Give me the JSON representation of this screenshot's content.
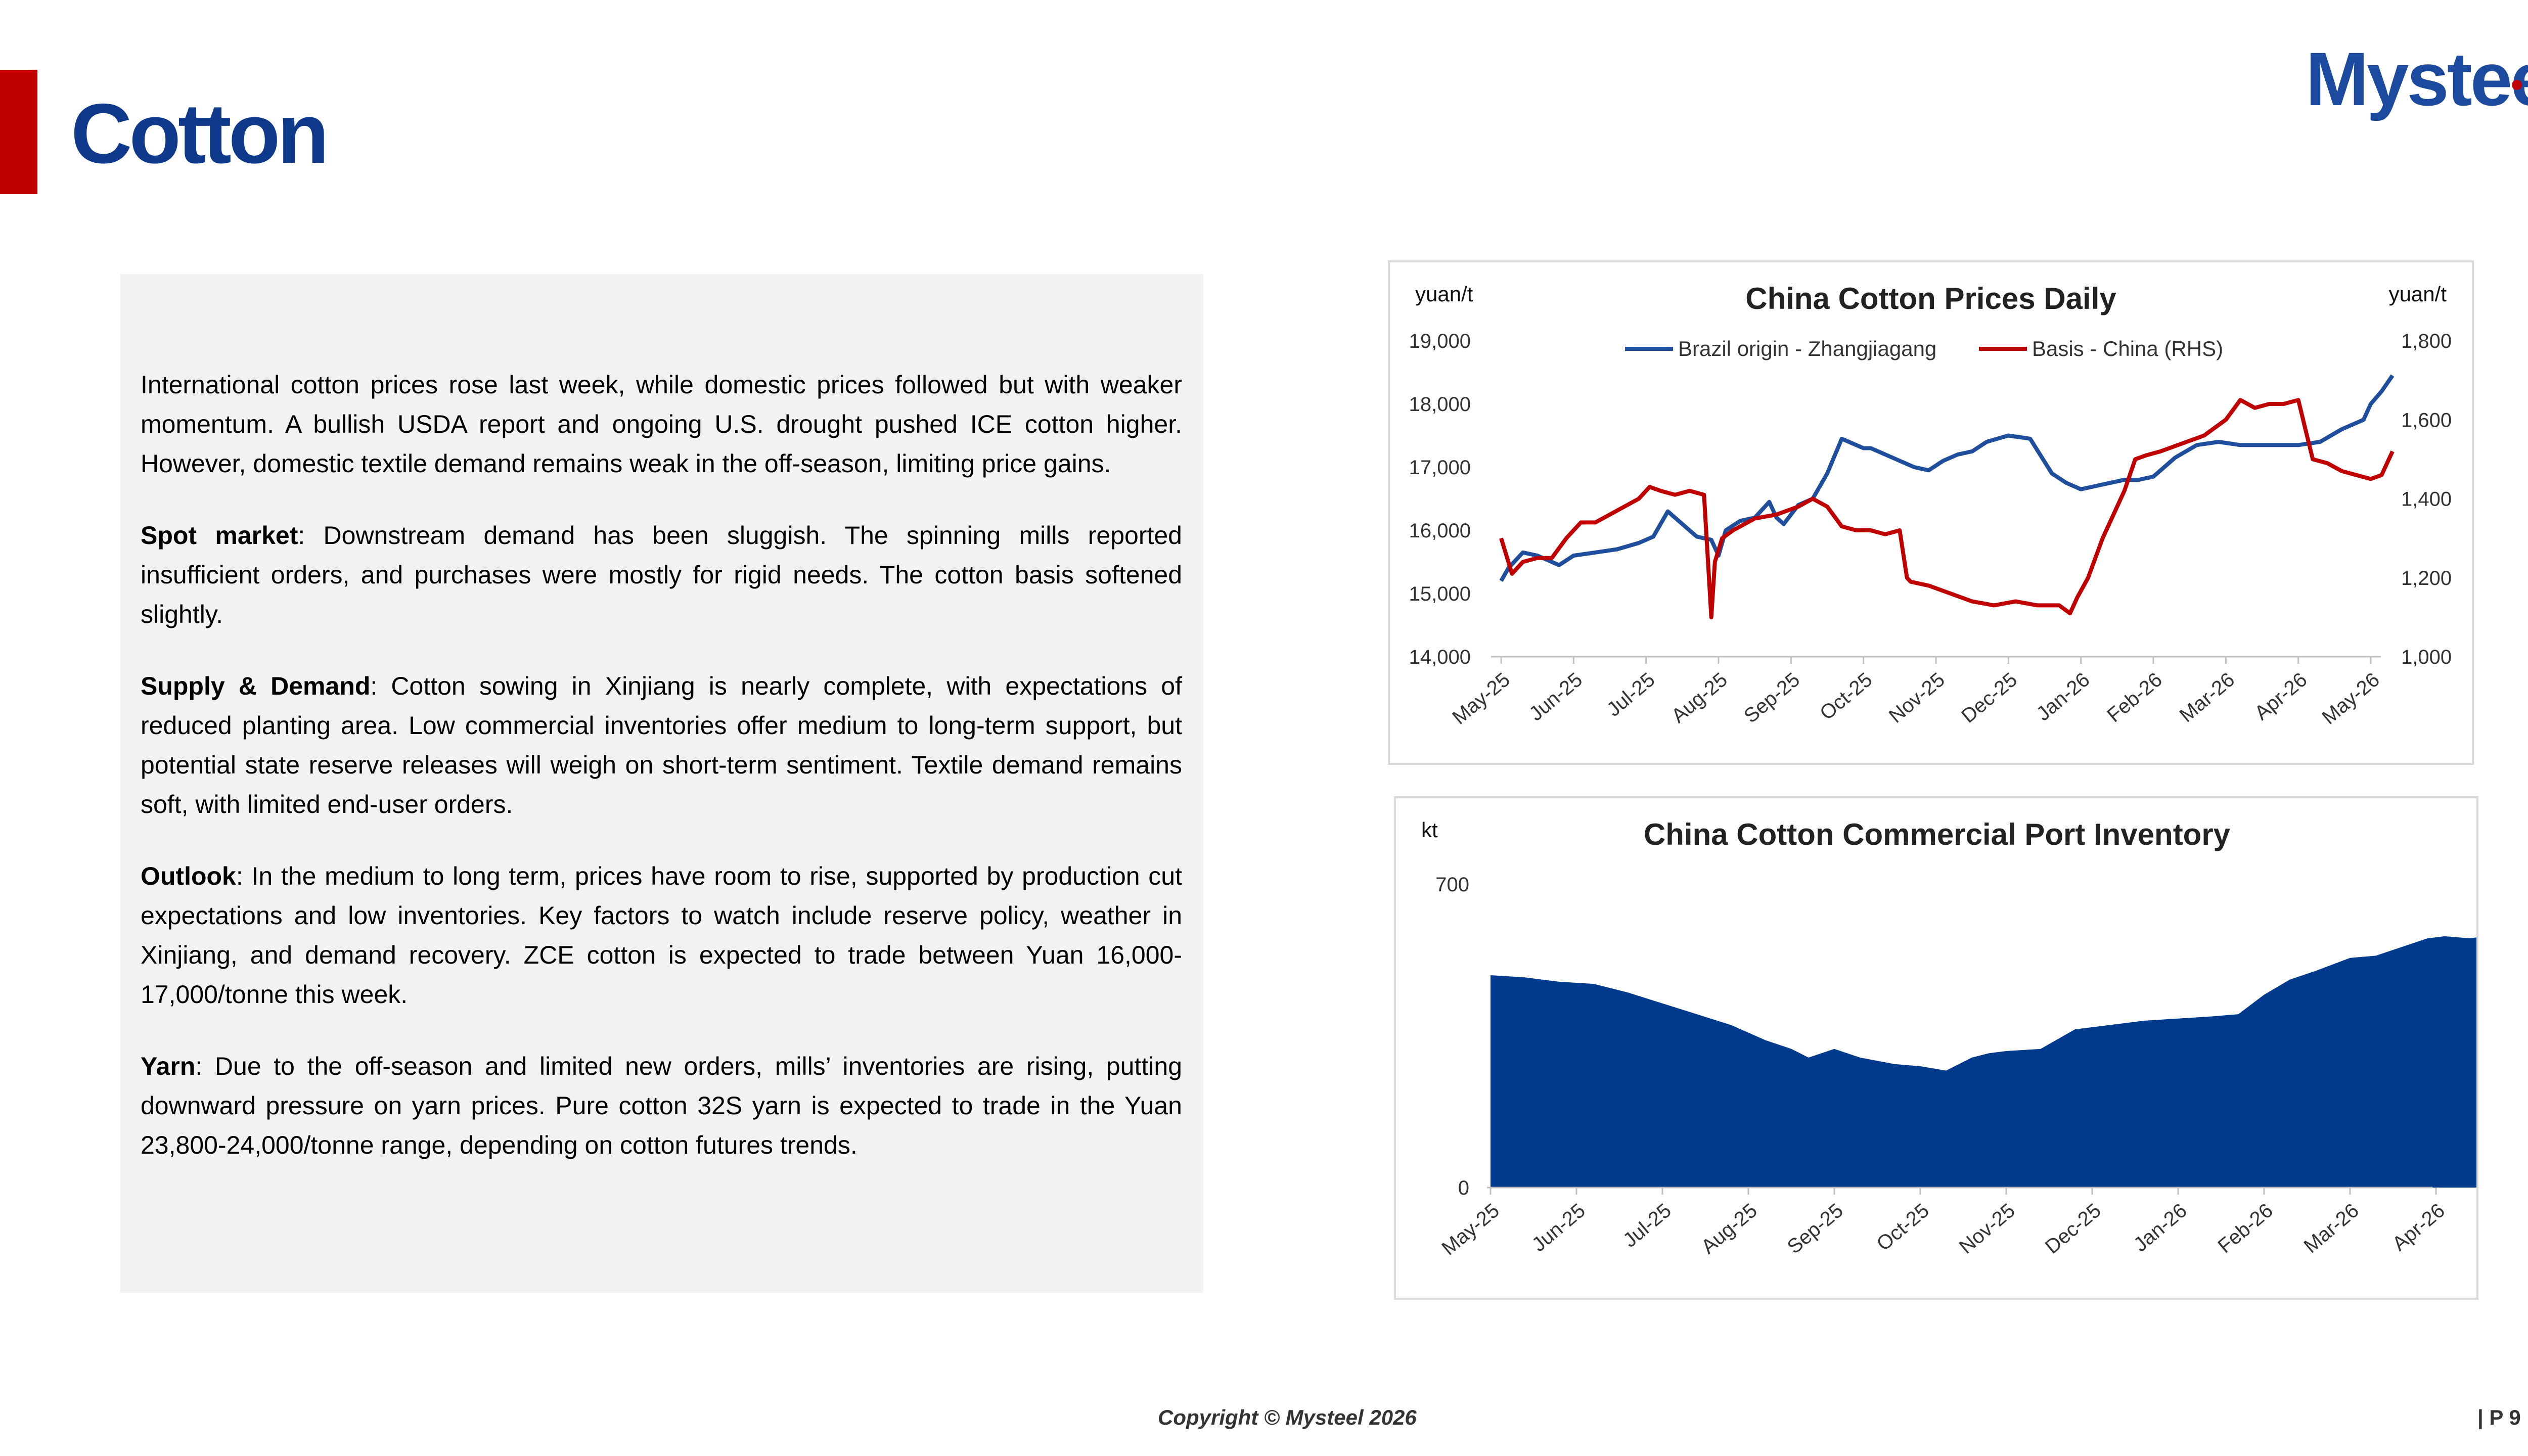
{
  "header": {
    "title": "Cotton",
    "logo_text": "Mysteel",
    "accent_color": "#c00000",
    "title_color": "#0f3a8c"
  },
  "commentary": {
    "intro": "International cotton prices rose last week, while domestic prices followed but with weaker momentum. A bullish USDA report and ongoing U.S. drought pushed ICE cotton higher. However, domestic textile demand remains weak in the off-season, limiting price gains.",
    "spot_heading": "Spot market",
    "spot_text": ": Downstream demand has been sluggish. The spinning mills reported insufficient orders, and purchases were mostly for rigid needs. The cotton basis softened slightly.",
    "supply_heading": "Supply & Demand",
    "supply_text": ": Cotton sowing in Xinjiang is nearly complete, with expectations of reduced planting area. Low commercial inventories offer medium to long-term support, but potential state reserve releases will weigh on short-term sentiment. Textile demand remains soft, with limited end-user orders.",
    "outlook_heading": "Outlook",
    "outlook_text": ": In the medium to long term, prices have room to rise, supported by production cut expectations and low inventories. Key factors to watch include reserve policy, weather in Xinjiang, and demand recovery. ZCE cotton is expected to trade between Yuan 16,000-17,000/tonne this week.",
    "yarn_heading": "Yarn",
    "yarn_text": ": Due to the off-season and limited new orders, mills’ inventories are rising, putting downward pressure on yarn prices. Pure cotton 32S yarn is expected to trade in the Yuan 23,800-24,000/tonne range, depending on cotton futures trends."
  },
  "footer": {
    "copyright": "Copyright © Mysteel 2026",
    "page": "| P 9"
  },
  "chart_data": [
    {
      "type": "line",
      "title": "China Cotton Prices Daily",
      "ylabel_left": "yuan/t",
      "ylabel_right": "yuan/t",
      "ylim_left": [
        14000,
        19000
      ],
      "ylim_right": [
        1000,
        1800
      ],
      "yticks_left": [
        "14,000",
        "15,000",
        "16,000",
        "17,000",
        "18,000",
        "19,000"
      ],
      "yticks_right": [
        "1,000",
        "1,200",
        "1,400",
        "1,600",
        "1,800"
      ],
      "categories": [
        "May-25",
        "Jun-25",
        "Jul-25",
        "Aug-25",
        "Sep-25",
        "Oct-25",
        "Nov-25",
        "Dec-25",
        "Jan-26",
        "Feb-26",
        "Mar-26",
        "Apr-26",
        "May-26"
      ],
      "legend_position": "top",
      "grid": false,
      "series": [
        {
          "name": "Brazil origin - Zhangjiagang",
          "axis": "left",
          "color": "#1f4e9c",
          "x": [
            0,
            0.1,
            0.3,
            0.5,
            0.8,
            1.0,
            1.3,
            1.6,
            1.9,
            2.1,
            2.3,
            2.5,
            2.7,
            2.9,
            3.0,
            3.1,
            3.3,
            3.5,
            3.7,
            3.8,
            3.9,
            4.1,
            4.3,
            4.5,
            4.7,
            4.9,
            5.0,
            5.1,
            5.3,
            5.5,
            5.7,
            5.9,
            6.1,
            6.3,
            6.5,
            6.7,
            7.0,
            7.3,
            7.6,
            7.8,
            7.9,
            8.0,
            8.2,
            8.4,
            8.6,
            8.8,
            9.0,
            9.3,
            9.6,
            9.9,
            10.2,
            10.5,
            10.7,
            11.0,
            11.3,
            11.6,
            11.9,
            12.0,
            12.15,
            12.3
          ],
          "y": [
            15200,
            15400,
            15650,
            15600,
            15450,
            15600,
            15650,
            15700,
            15800,
            15900,
            16300,
            16100,
            15900,
            15850,
            15600,
            16000,
            16150,
            16200,
            16450,
            16200,
            16100,
            16400,
            16500,
            16900,
            17450,
            17350,
            17300,
            17300,
            17200,
            17100,
            17000,
            16950,
            17100,
            17200,
            17250,
            17400,
            17500,
            17450,
            16900,
            16750,
            16700,
            16650,
            16700,
            16750,
            16800,
            16800,
            16850,
            17150,
            17350,
            17400,
            17350,
            17350,
            17350,
            17350,
            17400,
            17600,
            17750,
            18000,
            18200,
            18450
          ]
        },
        {
          "name": "Basis - China (RHS)",
          "axis": "right",
          "color": "#c00000",
          "x": [
            0,
            0.15,
            0.3,
            0.5,
            0.7,
            0.9,
            1.1,
            1.3,
            1.5,
            1.7,
            1.9,
            2.05,
            2.2,
            2.4,
            2.6,
            2.8,
            2.9,
            2.95,
            3.05,
            3.2,
            3.5,
            3.8,
            4.1,
            4.3,
            4.5,
            4.7,
            4.9,
            5.1,
            5.3,
            5.5,
            5.6,
            5.65,
            5.9,
            6.2,
            6.5,
            6.8,
            7.1,
            7.4,
            7.7,
            7.85,
            7.95,
            8.1,
            8.3,
            8.6,
            8.75,
            8.9,
            9.1,
            9.4,
            9.7,
            10.0,
            10.2,
            10.4,
            10.6,
            10.8,
            11.0,
            11.2,
            11.4,
            11.6,
            11.8,
            12.0,
            12.15,
            12.3
          ],
          "y": [
            1300,
            1210,
            1240,
            1250,
            1250,
            1300,
            1340,
            1340,
            1360,
            1380,
            1400,
            1430,
            1420,
            1410,
            1420,
            1410,
            1100,
            1240,
            1300,
            1320,
            1350,
            1360,
            1380,
            1400,
            1380,
            1330,
            1320,
            1320,
            1310,
            1320,
            1200,
            1190,
            1180,
            1160,
            1140,
            1130,
            1140,
            1130,
            1130,
            1110,
            1150,
            1200,
            1300,
            1420,
            1500,
            1510,
            1520,
            1540,
            1560,
            1600,
            1650,
            1630,
            1640,
            1640,
            1650,
            1500,
            1490,
            1470,
            1460,
            1450,
            1460,
            1520
          ]
        }
      ]
    },
    {
      "type": "area",
      "title": "China Cotton Commercial Port Inventory",
      "ylabel": "kt",
      "ylim": [
        0,
        700
      ],
      "yticks": [
        "0",
        "700"
      ],
      "categories": [
        "May-25",
        "Jun-25",
        "Jul-25",
        "Aug-25",
        "Sep-25",
        "Oct-25",
        "Nov-25",
        "Dec-25",
        "Jan-26",
        "Feb-26",
        "Mar-26",
        "Apr-26"
      ],
      "grid": false,
      "series": [
        {
          "name": "",
          "color": "#003a8c",
          "x": [
            0,
            0.4,
            0.8,
            1.2,
            1.6,
            2.0,
            2.4,
            2.8,
            3.2,
            3.5,
            3.7,
            4.0,
            4.3,
            4.7,
            5.0,
            5.3,
            5.6,
            5.8,
            6.0,
            6.4,
            6.8,
            7.2,
            7.6,
            8.0,
            8.4,
            8.7,
            9.0,
            9.3,
            9.6,
            10.0,
            10.3,
            10.6,
            10.9,
            11.1,
            11.4,
            11.7,
            12.05
          ],
          "y": [
            490,
            485,
            475,
            470,
            450,
            425,
            400,
            375,
            340,
            320,
            300,
            320,
            300,
            285,
            280,
            270,
            300,
            310,
            315,
            320,
            365,
            375,
            385,
            390,
            395,
            400,
            445,
            480,
            500,
            530,
            535,
            555,
            575,
            580,
            575,
            585,
            585
          ]
        }
      ]
    }
  ]
}
